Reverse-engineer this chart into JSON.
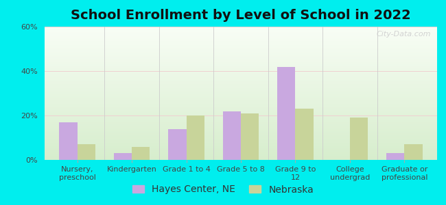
{
  "title": "School Enrollment by Level of School in 2022",
  "categories": [
    "Nursery,\npreschool",
    "Kindergarten",
    "Grade 1 to 4",
    "Grade 5 to 8",
    "Grade 9 to\n12",
    "College\nundergrad",
    "Graduate or\nprofessional"
  ],
  "hayes_values": [
    17,
    3,
    14,
    22,
    42,
    0,
    3
  ],
  "nebraska_values": [
    7,
    6,
    20,
    21,
    23,
    19,
    7
  ],
  "hayes_color": "#c9a8e0",
  "nebraska_color": "#c8d49a",
  "ylim": [
    0,
    60
  ],
  "yticks": [
    0,
    20,
    40,
    60
  ],
  "ytick_labels": [
    "0%",
    "20%",
    "40%",
    "60%"
  ],
  "bg_outer": "#00EEEE",
  "legend_labels": [
    "Hayes Center, NE",
    "Nebraska"
  ],
  "watermark": "City-Data.com",
  "title_fontsize": 14,
  "tick_fontsize": 8,
  "legend_fontsize": 10,
  "grad_top": "#f8fdf5",
  "grad_bottom": "#d6edcc"
}
